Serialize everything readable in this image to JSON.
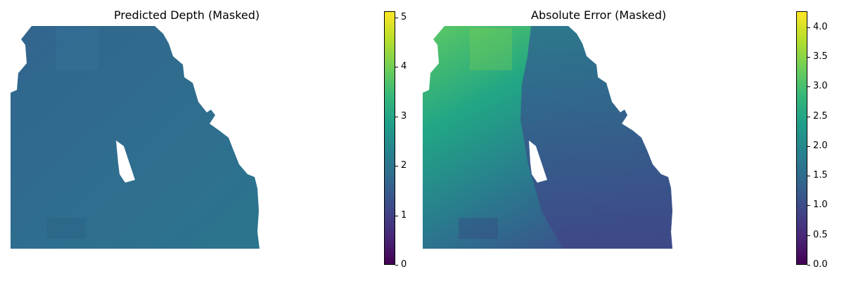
{
  "panels": [
    {
      "title": "Predicted Depth (Masked)",
      "colorbar": {
        "ticks": [
          "0",
          "1",
          "2",
          "3",
          "4",
          "5"
        ]
      },
      "colormap": "viridis",
      "base_color": "#2f6a8d"
    },
    {
      "title": "Absolute Error (Masked)",
      "colorbar": {
        "ticks": [
          "0.0",
          "0.5",
          "1.0",
          "1.5",
          "2.0",
          "2.5",
          "3.0",
          "3.5",
          "4.0"
        ]
      },
      "colormap": "viridis",
      "base_color": "#3a5790"
    }
  ]
}
